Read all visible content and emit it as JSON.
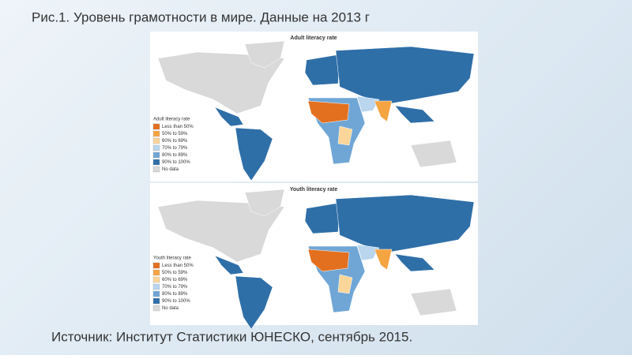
{
  "title": "Рис.1. Уровень грамотности в мире. Данные на 2013 г",
  "maps": [
    {
      "title": "Adult literacy rate",
      "legend": {
        "title": "Adult literacy rate",
        "items": [
          {
            "label": "Less than 50%",
            "color": "#e3701f"
          },
          {
            "label": "50% to 59%",
            "color": "#f5a442"
          },
          {
            "label": "60% to 69%",
            "color": "#fbd59a"
          },
          {
            "label": "70% to 79%",
            "color": "#b9d6ee"
          },
          {
            "label": "80% to 89%",
            "color": "#6fa6d6"
          },
          {
            "label": "90% to 100%",
            "color": "#2f6fa8"
          },
          {
            "label": "No data",
            "color": "#d9d9d9"
          }
        ]
      }
    },
    {
      "title": "Youth literacy rate",
      "legend": {
        "title": "Youth literacy rate",
        "items": [
          {
            "label": "Less than 50%",
            "color": "#e3701f"
          },
          {
            "label": "50% to 59%",
            "color": "#f5a442"
          },
          {
            "label": "60% to 69%",
            "color": "#fbd59a"
          },
          {
            "label": "70% to 79%",
            "color": "#b9d6ee"
          },
          {
            "label": "80% to 89%",
            "color": "#6fa6d6"
          },
          {
            "label": "90% to 100%",
            "color": "#2f6fa8"
          },
          {
            "label": "No data",
            "color": "#d9d9d9"
          }
        ]
      }
    }
  ],
  "source": "Источник: Институт Статистики ЮНЕСКО, сентябрь 2015."
}
